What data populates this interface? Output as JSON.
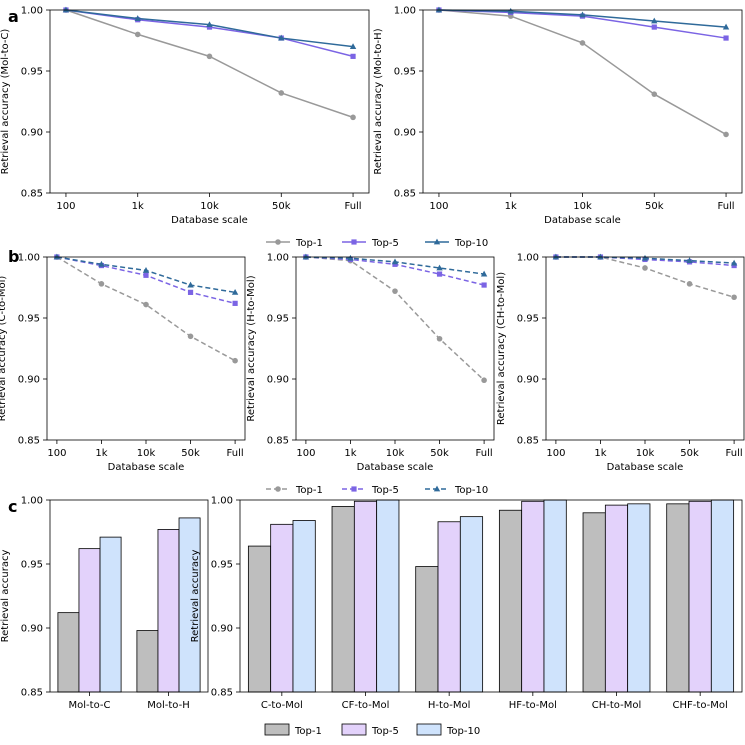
{
  "panel_labels": {
    "a": "a",
    "b": "b",
    "c": "c"
  },
  "colors": {
    "top1": "#999999",
    "top5": "#7b64e4",
    "top10": "#2f6a9a",
    "bar_top1": "#bebebe",
    "bar_top5": "#e3d2fb",
    "bar_top10": "#cfe3fc"
  },
  "legends": {
    "line": [
      "Top-1",
      "Top-5",
      "Top-10"
    ],
    "dashed": [
      "Top-1",
      "Top-5",
      "Top-10"
    ],
    "bar": [
      "Top-1",
      "Top-5",
      "Top-10"
    ]
  },
  "chart_data": [
    {
      "type": "line",
      "panel": "a",
      "categories": [
        "100",
        "1k",
        "10k",
        "50k",
        "Full"
      ],
      "ylabel": "Retrieval accuracy (Mol-to-C)",
      "xlabel": "Database scale",
      "ylim": [
        0.85,
        1.0
      ],
      "yticks": [
        "0.85",
        "0.90",
        "0.95",
        "1.00"
      ],
      "series": [
        {
          "name": "Top-1",
          "values": [
            1.0,
            0.98,
            0.962,
            0.932,
            0.912
          ]
        },
        {
          "name": "Top-5",
          "values": [
            1.0,
            0.992,
            0.986,
            0.977,
            0.962
          ]
        },
        {
          "name": "Top-10",
          "values": [
            1.0,
            0.993,
            0.988,
            0.977,
            0.97
          ]
        }
      ]
    },
    {
      "type": "line",
      "panel": "a",
      "categories": [
        "100",
        "1k",
        "10k",
        "50k",
        "Full"
      ],
      "ylabel": "Retrieval accuracy (Mol-to-H)",
      "xlabel": "Database scale",
      "ylim": [
        0.85,
        1.0
      ],
      "yticks": [
        "0.85",
        "0.90",
        "0.95",
        "1.00"
      ],
      "series": [
        {
          "name": "Top-1",
          "values": [
            1.0,
            0.995,
            0.973,
            0.931,
            0.898
          ]
        },
        {
          "name": "Top-5",
          "values": [
            1.0,
            0.998,
            0.995,
            0.986,
            0.977
          ]
        },
        {
          "name": "Top-10",
          "values": [
            1.0,
            0.999,
            0.996,
            0.991,
            0.986
          ]
        }
      ]
    },
    {
      "type": "line",
      "panel": "b",
      "style": "dashed",
      "categories": [
        "100",
        "1k",
        "10k",
        "50k",
        "Full"
      ],
      "ylabel": "Retrieval accuracy (C-to-Mol)",
      "xlabel": "Database scale",
      "ylim": [
        0.85,
        1.0
      ],
      "yticks": [
        "0.85",
        "0.90",
        "0.95",
        "1.00"
      ],
      "series": [
        {
          "name": "Top-1",
          "values": [
            1.0,
            0.978,
            0.961,
            0.935,
            0.915
          ]
        },
        {
          "name": "Top-5",
          "values": [
            1.0,
            0.993,
            0.985,
            0.971,
            0.962
          ]
        },
        {
          "name": "Top-10",
          "values": [
            1.0,
            0.994,
            0.989,
            0.977,
            0.971
          ]
        }
      ]
    },
    {
      "type": "line",
      "panel": "b",
      "style": "dashed",
      "categories": [
        "100",
        "1k",
        "10k",
        "50k",
        "Full"
      ],
      "ylabel": "Retrieval accuracy (H-to-Mol)",
      "xlabel": "Database scale",
      "ylim": [
        0.85,
        1.0
      ],
      "yticks": [
        "0.85",
        "0.90",
        "0.95",
        "1.00"
      ],
      "series": [
        {
          "name": "Top-1",
          "values": [
            1.0,
            0.997,
            0.972,
            0.933,
            0.899
          ]
        },
        {
          "name": "Top-5",
          "values": [
            1.0,
            0.998,
            0.994,
            0.986,
            0.977
          ]
        },
        {
          "name": "Top-10",
          "values": [
            1.0,
            0.999,
            0.996,
            0.991,
            0.986
          ]
        }
      ]
    },
    {
      "type": "line",
      "panel": "b",
      "style": "dashed",
      "categories": [
        "100",
        "1k",
        "10k",
        "50k",
        "Full"
      ],
      "ylabel": "Retrieval accuracy (CH-to-Mol)",
      "xlabel": "Database scale",
      "ylim": [
        0.85,
        1.0
      ],
      "yticks": [
        "0.85",
        "0.90",
        "0.95",
        "1.00"
      ],
      "series": [
        {
          "name": "Top-1",
          "values": [
            1.0,
            1.0,
            0.991,
            0.978,
            0.967
          ]
        },
        {
          "name": "Top-5",
          "values": [
            1.0,
            1.0,
            0.998,
            0.996,
            0.993
          ]
        },
        {
          "name": "Top-10",
          "values": [
            1.0,
            1.0,
            0.999,
            0.997,
            0.995
          ]
        }
      ]
    },
    {
      "type": "bar",
      "panel": "c",
      "categories": [
        "Mol-to-C",
        "Mol-to-H"
      ],
      "ylabel": "Retrieval accuracy",
      "ylim": [
        0.85,
        1.0
      ],
      "yticks": [
        "0.85",
        "0.90",
        "0.95",
        "1.00"
      ],
      "series": [
        {
          "name": "Top-1",
          "values": [
            0.912,
            0.898
          ]
        },
        {
          "name": "Top-5",
          "values": [
            0.962,
            0.977
          ]
        },
        {
          "name": "Top-10",
          "values": [
            0.971,
            0.986
          ]
        }
      ]
    },
    {
      "type": "bar",
      "panel": "c",
      "categories": [
        "C-to-Mol",
        "CF-to-Mol",
        "H-to-Mol",
        "HF-to-Mol",
        "CH-to-Mol",
        "CHF-to-Mol"
      ],
      "ylabel": "Retrieval accuracy",
      "ylim": [
        0.85,
        1.0
      ],
      "yticks": [
        "0.85",
        "0.90",
        "0.95",
        "1.00"
      ],
      "series": [
        {
          "name": "Top-1",
          "values": [
            0.964,
            0.995,
            0.948,
            0.992,
            0.99,
            0.997
          ]
        },
        {
          "name": "Top-5",
          "values": [
            0.981,
            0.999,
            0.983,
            0.999,
            0.996,
            0.999
          ]
        },
        {
          "name": "Top-10",
          "values": [
            0.984,
            1.0,
            0.987,
            1.0,
            0.997,
            1.0
          ]
        }
      ]
    }
  ]
}
